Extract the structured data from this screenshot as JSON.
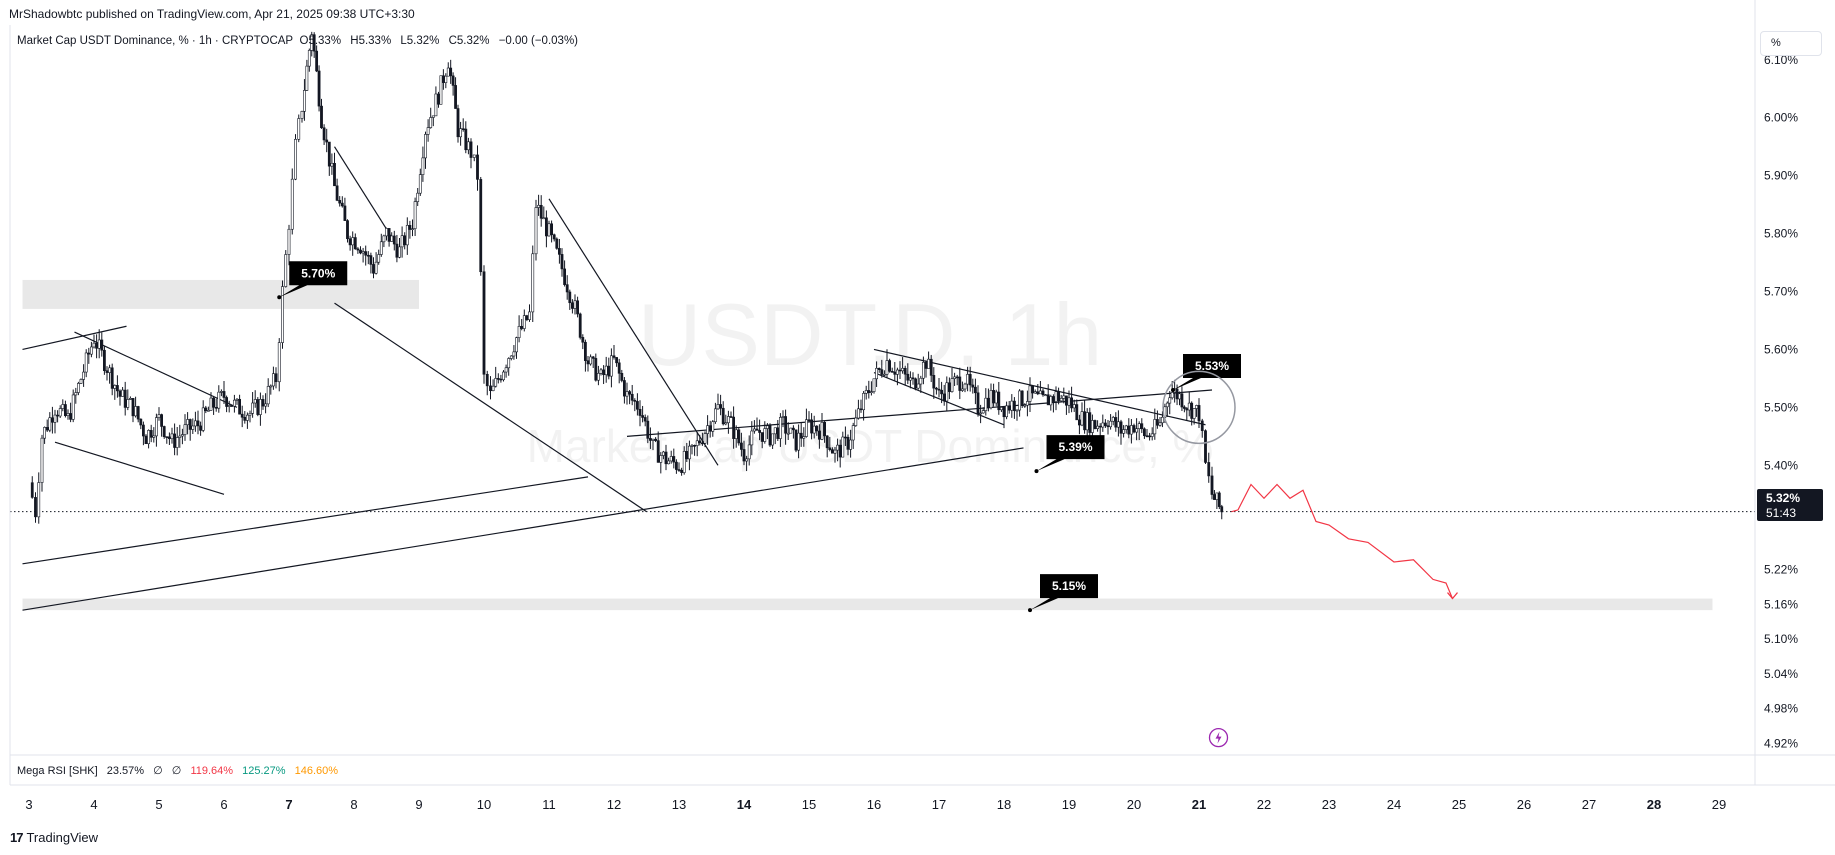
{
  "header": {
    "published_by": "MrShadowbtc published on TradingView.com, Apr 21, 2025 09:38 UTC+3:30",
    "symbol_title": "Market Cap USDT Dominance, % · 1h · CRYPTOCAP",
    "ohlc": [
      {
        "label": "O",
        "value": "5.33%"
      },
      {
        "label": "H",
        "value": "5.33%"
      },
      {
        "label": "L",
        "value": "5.32%"
      },
      {
        "label": "C",
        "value": "5.32%"
      }
    ],
    "change": "−0.00 (−0.03%)",
    "unit_button": "%"
  },
  "watermark": {
    "line1": "USDT.D, 1h",
    "line2": "Market Cap USDT Dominance, %"
  },
  "indicator": {
    "name": "Mega RSI [SHK]",
    "values": [
      {
        "text": "23.57%",
        "color": "#131722"
      },
      {
        "text": "∅",
        "color": "#131722"
      },
      {
        "text": "∅",
        "color": "#131722"
      },
      {
        "text": "119.64%",
        "color": "#f23645"
      },
      {
        "text": "125.27%",
        "color": "#089981"
      },
      {
        "text": "146.60%",
        "color": "#ff9800"
      }
    ]
  },
  "price_axis": {
    "labels": [
      "6.10%",
      "6.00%",
      "5.90%",
      "5.80%",
      "5.70%",
      "5.60%",
      "5.50%",
      "5.40%",
      "5.22%",
      "5.16%",
      "5.10%",
      "5.04%",
      "4.98%",
      "4.92%"
    ],
    "current_price": "5.32%",
    "countdown": "51:43"
  },
  "time_axis": {
    "labels": [
      {
        "text": "3",
        "bold": false
      },
      {
        "text": "4",
        "bold": false
      },
      {
        "text": "5",
        "bold": false
      },
      {
        "text": "6",
        "bold": false
      },
      {
        "text": "7",
        "bold": true
      },
      {
        "text": "8",
        "bold": false
      },
      {
        "text": "9",
        "bold": false
      },
      {
        "text": "10",
        "bold": false
      },
      {
        "text": "11",
        "bold": false
      },
      {
        "text": "12",
        "bold": false
      },
      {
        "text": "13",
        "bold": false
      },
      {
        "text": "14",
        "bold": true
      },
      {
        "text": "15",
        "bold": false
      },
      {
        "text": "16",
        "bold": false
      },
      {
        "text": "17",
        "bold": false
      },
      {
        "text": "18",
        "bold": false
      },
      {
        "text": "19",
        "bold": false
      },
      {
        "text": "20",
        "bold": false
      },
      {
        "text": "21",
        "bold": true
      },
      {
        "text": "22",
        "bold": false
      },
      {
        "text": "23",
        "bold": false
      },
      {
        "text": "24",
        "bold": false
      },
      {
        "text": "25",
        "bold": false
      },
      {
        "text": "26",
        "bold": false
      },
      {
        "text": "27",
        "bold": false
      },
      {
        "text": "28",
        "bold": true
      },
      {
        "text": "29",
        "bold": false
      }
    ]
  },
  "annotations": [
    {
      "text": "5.70%"
    },
    {
      "text": "5.53%"
    },
    {
      "text": "5.39%"
    },
    {
      "text": "5.15%"
    }
  ],
  "brand": "TradingView",
  "colors": {
    "candle": "#131722",
    "projection": "#f23645",
    "zone": "#e8e8e8",
    "axis_text": "#131722",
    "label_bg": "#000000",
    "event_icon": "#9c27b0"
  },
  "chart_data": {
    "type": "candlestick",
    "x_unit": "day of month (Apr 2025)",
    "y_unit": "%",
    "ylim": [
      4.9,
      6.16
    ],
    "xlim": [
      2.9,
      29.6
    ],
    "grid": false,
    "close_series": [
      {
        "x": 3.0,
        "y": 5.37
      },
      {
        "x": 3.1,
        "y": 5.32
      },
      {
        "x": 3.2,
        "y": 5.45
      },
      {
        "x": 3.4,
        "y": 5.5
      },
      {
        "x": 3.6,
        "y": 5.48
      },
      {
        "x": 3.8,
        "y": 5.55
      },
      {
        "x": 4.0,
        "y": 5.62
      },
      {
        "x": 4.2,
        "y": 5.57
      },
      {
        "x": 4.4,
        "y": 5.52
      },
      {
        "x": 4.6,
        "y": 5.5
      },
      {
        "x": 4.8,
        "y": 5.45
      },
      {
        "x": 5.0,
        "y": 5.48
      },
      {
        "x": 5.2,
        "y": 5.44
      },
      {
        "x": 5.4,
        "y": 5.46
      },
      {
        "x": 5.6,
        "y": 5.47
      },
      {
        "x": 5.8,
        "y": 5.5
      },
      {
        "x": 6.0,
        "y": 5.52
      },
      {
        "x": 6.2,
        "y": 5.5
      },
      {
        "x": 6.4,
        "y": 5.49
      },
      {
        "x": 6.6,
        "y": 5.51
      },
      {
        "x": 6.8,
        "y": 5.55
      },
      {
        "x": 6.9,
        "y": 5.7
      },
      {
        "x": 7.0,
        "y": 5.82
      },
      {
        "x": 7.1,
        "y": 5.95
      },
      {
        "x": 7.2,
        "y": 6.02
      },
      {
        "x": 7.35,
        "y": 6.15
      },
      {
        "x": 7.5,
        "y": 6.0
      },
      {
        "x": 7.7,
        "y": 5.88
      },
      {
        "x": 7.9,
        "y": 5.8
      },
      {
        "x": 8.1,
        "y": 5.78
      },
      {
        "x": 8.3,
        "y": 5.74
      },
      {
        "x": 8.5,
        "y": 5.8
      },
      {
        "x": 8.7,
        "y": 5.77
      },
      {
        "x": 8.9,
        "y": 5.82
      },
      {
        "x": 9.1,
        "y": 5.98
      },
      {
        "x": 9.3,
        "y": 6.04
      },
      {
        "x": 9.45,
        "y": 6.1
      },
      {
        "x": 9.6,
        "y": 5.98
      },
      {
        "x": 9.8,
        "y": 5.94
      },
      {
        "x": 9.9,
        "y": 5.9
      },
      {
        "x": 10.0,
        "y": 5.55
      },
      {
        "x": 10.1,
        "y": 5.52
      },
      {
        "x": 10.3,
        "y": 5.57
      },
      {
        "x": 10.5,
        "y": 5.62
      },
      {
        "x": 10.7,
        "y": 5.66
      },
      {
        "x": 10.8,
        "y": 5.85
      },
      {
        "x": 11.0,
        "y": 5.8
      },
      {
        "x": 11.2,
        "y": 5.74
      },
      {
        "x": 11.4,
        "y": 5.67
      },
      {
        "x": 11.6,
        "y": 5.58
      },
      {
        "x": 11.8,
        "y": 5.55
      },
      {
        "x": 12.0,
        "y": 5.58
      },
      {
        "x": 12.2,
        "y": 5.52
      },
      {
        "x": 12.4,
        "y": 5.5
      },
      {
        "x": 12.6,
        "y": 5.43
      },
      {
        "x": 12.8,
        "y": 5.41
      },
      {
        "x": 13.0,
        "y": 5.4
      },
      {
        "x": 13.2,
        "y": 5.42
      },
      {
        "x": 13.4,
        "y": 5.46
      },
      {
        "x": 13.6,
        "y": 5.5
      },
      {
        "x": 13.8,
        "y": 5.47
      },
      {
        "x": 14.0,
        "y": 5.42
      },
      {
        "x": 14.2,
        "y": 5.46
      },
      {
        "x": 14.4,
        "y": 5.45
      },
      {
        "x": 14.6,
        "y": 5.47
      },
      {
        "x": 14.8,
        "y": 5.44
      },
      {
        "x": 15.0,
        "y": 5.47
      },
      {
        "x": 15.2,
        "y": 5.46
      },
      {
        "x": 15.4,
        "y": 5.42
      },
      {
        "x": 15.6,
        "y": 5.44
      },
      {
        "x": 15.8,
        "y": 5.5
      },
      {
        "x": 16.0,
        "y": 5.55
      },
      {
        "x": 16.2,
        "y": 5.58
      },
      {
        "x": 16.4,
        "y": 5.56
      },
      {
        "x": 16.6,
        "y": 5.54
      },
      {
        "x": 16.8,
        "y": 5.58
      },
      {
        "x": 17.0,
        "y": 5.52
      },
      {
        "x": 17.2,
        "y": 5.54
      },
      {
        "x": 17.4,
        "y": 5.55
      },
      {
        "x": 17.6,
        "y": 5.5
      },
      {
        "x": 17.8,
        "y": 5.52
      },
      {
        "x": 18.0,
        "y": 5.5
      },
      {
        "x": 18.2,
        "y": 5.51
      },
      {
        "x": 18.4,
        "y": 5.52
      },
      {
        "x": 18.6,
        "y": 5.51
      },
      {
        "x": 18.8,
        "y": 5.52
      },
      {
        "x": 19.0,
        "y": 5.51
      },
      {
        "x": 19.2,
        "y": 5.48
      },
      {
        "x": 19.4,
        "y": 5.47
      },
      {
        "x": 19.6,
        "y": 5.48
      },
      {
        "x": 19.8,
        "y": 5.46
      },
      {
        "x": 20.0,
        "y": 5.47
      },
      {
        "x": 20.2,
        "y": 5.45
      },
      {
        "x": 20.4,
        "y": 5.47
      },
      {
        "x": 20.55,
        "y": 5.53
      },
      {
        "x": 20.7,
        "y": 5.52
      },
      {
        "x": 20.85,
        "y": 5.5
      },
      {
        "x": 21.0,
        "y": 5.49
      },
      {
        "x": 21.1,
        "y": 5.4
      },
      {
        "x": 21.2,
        "y": 5.35
      },
      {
        "x": 21.35,
        "y": 5.32
      }
    ],
    "projection": [
      {
        "x": 21.5,
        "y": 5.32
      },
      {
        "x": 21.6,
        "y": 5.33
      },
      {
        "x": 21.8,
        "y": 5.36
      },
      {
        "x": 22.0,
        "y": 5.35
      },
      {
        "x": 22.2,
        "y": 5.36
      },
      {
        "x": 22.4,
        "y": 5.35
      },
      {
        "x": 22.6,
        "y": 5.35
      },
      {
        "x": 22.8,
        "y": 5.31
      },
      {
        "x": 23.0,
        "y": 5.29
      },
      {
        "x": 23.3,
        "y": 5.28
      },
      {
        "x": 23.6,
        "y": 5.26
      },
      {
        "x": 24.0,
        "y": 5.24
      },
      {
        "x": 24.3,
        "y": 5.23
      },
      {
        "x": 24.6,
        "y": 5.21
      },
      {
        "x": 24.8,
        "y": 5.19
      },
      {
        "x": 24.9,
        "y": 5.17
      }
    ],
    "zones": [
      {
        "x_from": 2.9,
        "x_to": 9.0,
        "y_from": 5.67,
        "y_to": 5.72
      },
      {
        "x_from": 2.9,
        "x_to": 28.9,
        "y_from": 5.15,
        "y_to": 5.17
      }
    ],
    "trendlines": [
      {
        "x1": 2.9,
        "y1": 5.6,
        "x2": 4.5,
        "y2": 5.64
      },
      {
        "x1": 3.4,
        "y1": 5.44,
        "x2": 6.0,
        "y2": 5.35
      },
      {
        "x1": 3.7,
        "y1": 5.63,
        "x2": 6.2,
        "y2": 5.5
      },
      {
        "x1": 2.9,
        "y1": 5.23,
        "x2": 11.6,
        "y2": 5.38
      },
      {
        "x1": 2.9,
        "y1": 5.15,
        "x2": 18.3,
        "y2": 5.43
      },
      {
        "x1": 7.7,
        "y1": 5.95,
        "x2": 8.6,
        "y2": 5.79
      },
      {
        "x1": 7.7,
        "y1": 5.68,
        "x2": 12.5,
        "y2": 5.32
      },
      {
        "x1": 11.0,
        "y1": 5.86,
        "x2": 13.6,
        "y2": 5.4
      },
      {
        "x1": 12.2,
        "y1": 5.45,
        "x2": 21.2,
        "y2": 5.53
      },
      {
        "x1": 16.0,
        "y1": 5.6,
        "x2": 21.1,
        "y2": 5.47
      },
      {
        "x1": 16.0,
        "y1": 5.56,
        "x2": 18.0,
        "y2": 5.47
      }
    ],
    "levels": [
      {
        "price": 5.32,
        "style": "dotted"
      }
    ],
    "annotation_points": [
      {
        "x": 6.85,
        "y": 5.69,
        "text": "5.70%"
      },
      {
        "x": 20.6,
        "y": 5.53,
        "text": "5.53%"
      },
      {
        "x": 18.5,
        "y": 5.39,
        "text": "5.39%"
      },
      {
        "x": 18.4,
        "y": 5.15,
        "text": "5.15%"
      }
    ],
    "circle_marker": {
      "x": 21.0,
      "y": 5.5
    },
    "event_marker": {
      "x": 21.3,
      "y": 4.93
    }
  }
}
